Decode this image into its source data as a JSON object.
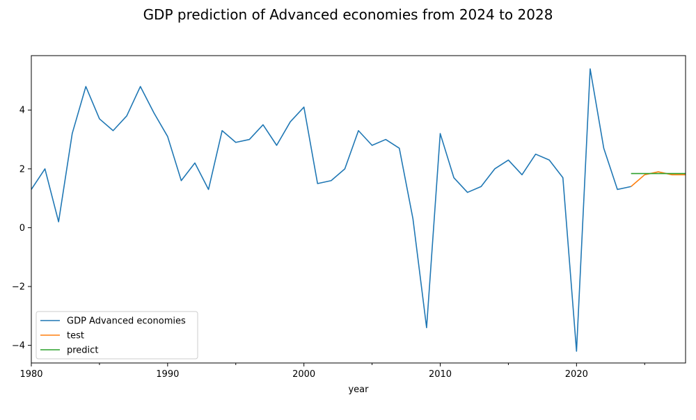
{
  "chart_data": {
    "type": "line",
    "title": "GDP prediction of Advanced economies from 2024 to 2028",
    "xlabel": "year",
    "ylabel": "",
    "xlim": [
      1980,
      2028
    ],
    "ylim": [
      -4.6,
      5.85
    ],
    "x_major_ticks": [
      1980,
      1990,
      2000,
      2010,
      2020
    ],
    "x_minor_ticks": [
      1985,
      1995,
      2005,
      2015,
      2025
    ],
    "y_ticks": [
      -4,
      -2,
      0,
      2,
      4
    ],
    "y_tick_labels": [
      "−4",
      "−2",
      "0",
      "2",
      "4"
    ],
    "grid": false,
    "legend_position": "lower-left",
    "series": [
      {
        "name": "GDP Advanced economies",
        "color": "#1f77b4",
        "x": [
          1980,
          1981,
          1982,
          1983,
          1984,
          1985,
          1986,
          1987,
          1988,
          1989,
          1990,
          1991,
          1992,
          1993,
          1994,
          1995,
          1996,
          1997,
          1998,
          1999,
          2000,
          2001,
          2002,
          2003,
          2004,
          2005,
          2006,
          2007,
          2008,
          2009,
          2010,
          2011,
          2012,
          2013,
          2014,
          2015,
          2016,
          2017,
          2018,
          2019,
          2020,
          2021,
          2022,
          2023,
          2024
        ],
        "values": [
          1.3,
          2.0,
          0.2,
          3.2,
          4.8,
          3.7,
          3.3,
          3.8,
          4.8,
          3.9,
          3.1,
          1.6,
          2.2,
          1.3,
          3.3,
          2.9,
          3.0,
          3.5,
          2.8,
          3.6,
          4.1,
          1.5,
          1.6,
          2.0,
          3.3,
          2.8,
          3.0,
          2.7,
          0.3,
          -3.4,
          3.2,
          1.7,
          1.2,
          1.4,
          2.0,
          2.3,
          1.8,
          2.5,
          2.3,
          1.7,
          -4.2,
          5.4,
          2.7,
          1.3,
          1.4
        ]
      },
      {
        "name": "test",
        "color": "#ff7f0e",
        "x": [
          2024,
          2025,
          2026,
          2027,
          2028
        ],
        "values": [
          1.4,
          1.8,
          1.9,
          1.8,
          1.8
        ]
      },
      {
        "name": "predict",
        "color": "#2ca02c",
        "x": [
          2024,
          2025,
          2026,
          2027,
          2028
        ],
        "values": [
          1.84,
          1.84,
          1.84,
          1.84,
          1.84
        ]
      }
    ]
  }
}
